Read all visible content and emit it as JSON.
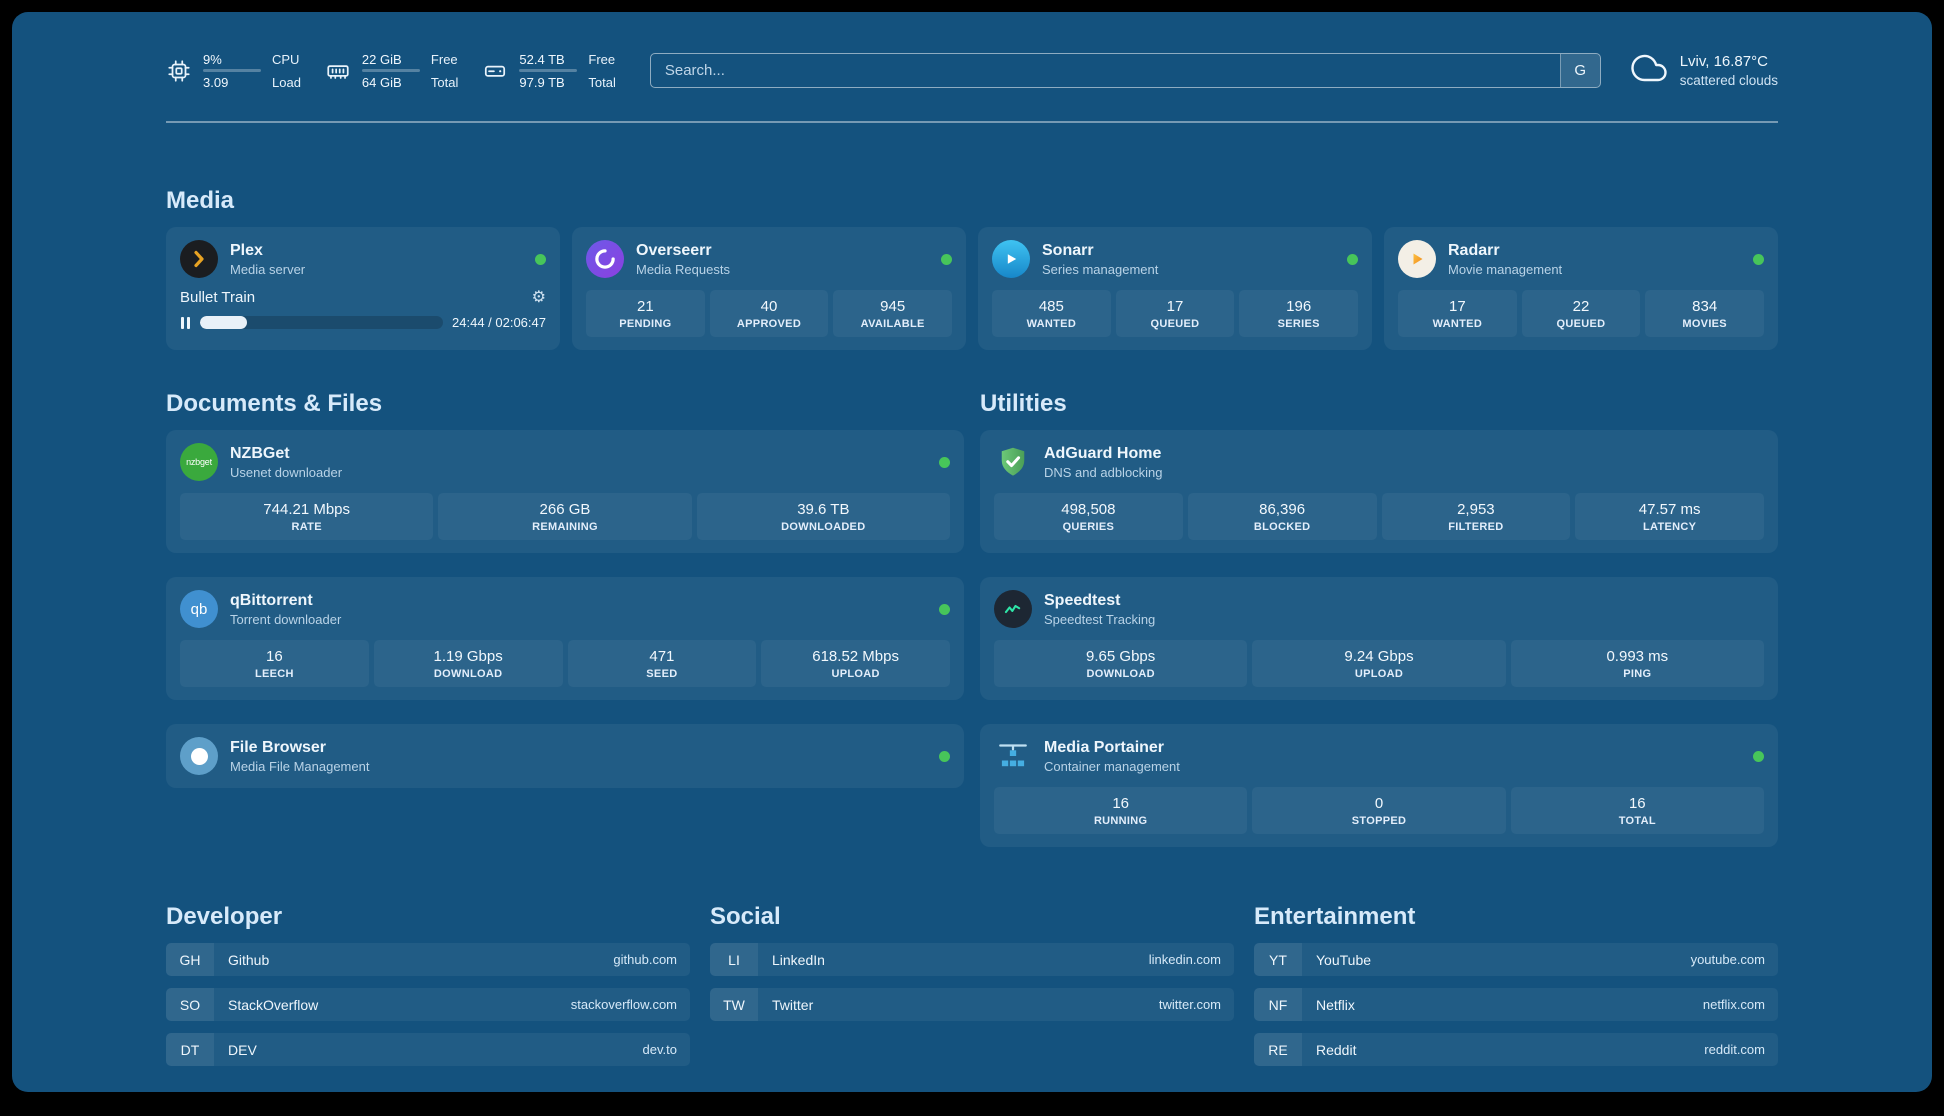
{
  "topbar": {
    "cpu": {
      "icon": "chip-icon",
      "value_top": "9%",
      "value_bottom": "3.09",
      "label_top": "CPU",
      "label_bottom": "Load",
      "progress_percent": 9
    },
    "ram": {
      "icon": "ram-icon",
      "value_top": "22 GiB",
      "value_bottom": "64 GiB",
      "label_top": "Free",
      "label_bottom": "Total",
      "progress_percent": 66
    },
    "disk": {
      "icon": "disk-icon",
      "value_top": "52.4 TB",
      "value_bottom": "97.9 TB",
      "label_top": "Free",
      "label_bottom": "Total",
      "progress_percent": 46
    },
    "search": {
      "placeholder": "Search...",
      "engine_label": "G"
    },
    "weather": {
      "icon": "cloud-icon",
      "location": "Lviv, 16.87°C",
      "condition": "scattered clouds"
    }
  },
  "media": {
    "heading": "Media",
    "plex": {
      "name": "Plex",
      "desc": "Media server",
      "online": true,
      "now_playing": {
        "title": "Bullet Train",
        "time": "24:44 / 02:06:47",
        "progress_percent": 19.5
      }
    },
    "overseerr": {
      "name": "Overseerr",
      "desc": "Media Requests",
      "online": true,
      "stats": [
        {
          "value": "21",
          "label": "PENDING"
        },
        {
          "value": "40",
          "label": "APPROVED"
        },
        {
          "value": "945",
          "label": "AVAILABLE"
        }
      ]
    },
    "sonarr": {
      "name": "Sonarr",
      "desc": "Series management",
      "online": true,
      "stats": [
        {
          "value": "485",
          "label": "WANTED"
        },
        {
          "value": "17",
          "label": "QUEUED"
        },
        {
          "value": "196",
          "label": "SERIES"
        }
      ]
    },
    "radarr": {
      "name": "Radarr",
      "desc": "Movie management",
      "online": true,
      "stats": [
        {
          "value": "17",
          "label": "WANTED"
        },
        {
          "value": "22",
          "label": "QUEUED"
        },
        {
          "value": "834",
          "label": "MOVIES"
        }
      ]
    }
  },
  "documents": {
    "heading": "Documents & Files",
    "nzbget": {
      "name": "NZBGet",
      "desc": "Usenet downloader",
      "online": true,
      "stats": [
        {
          "value": "744.21 Mbps",
          "label": "RATE"
        },
        {
          "value": "266 GB",
          "label": "REMAINING"
        },
        {
          "value": "39.6 TB",
          "label": "DOWNLOADED"
        }
      ]
    },
    "qbittorrent": {
      "name": "qBittorrent",
      "desc": "Torrent downloader",
      "online": true,
      "stats": [
        {
          "value": "16",
          "label": "LEECH"
        },
        {
          "value": "1.19 Gbps",
          "label": "DOWNLOAD"
        },
        {
          "value": "471",
          "label": "SEED"
        },
        {
          "value": "618.52 Mbps",
          "label": "UPLOAD"
        }
      ]
    },
    "filebrowser": {
      "name": "File Browser",
      "desc": "Media File Management",
      "online": true
    }
  },
  "utilities": {
    "heading": "Utilities",
    "adguard": {
      "name": "AdGuard Home",
      "desc": "DNS and adblocking",
      "stats": [
        {
          "value": "498,508",
          "label": "QUERIES"
        },
        {
          "value": "86,396",
          "label": "BLOCKED"
        },
        {
          "value": "2,953",
          "label": "FILTERED"
        },
        {
          "value": "47.57 ms",
          "label": "LATENCY"
        }
      ]
    },
    "speedtest": {
      "name": "Speedtest",
      "desc": "Speedtest Tracking",
      "stats": [
        {
          "value": "9.65 Gbps",
          "label": "DOWNLOAD"
        },
        {
          "value": "9.24 Gbps",
          "label": "UPLOAD"
        },
        {
          "value": "0.993 ms",
          "label": "PING"
        }
      ]
    },
    "portainer": {
      "name": "Media Portainer",
      "desc": "Container management",
      "online": true,
      "stats": [
        {
          "value": "16",
          "label": "RUNNING"
        },
        {
          "value": "0",
          "label": "STOPPED"
        },
        {
          "value": "16",
          "label": "TOTAL"
        }
      ]
    }
  },
  "bookmarks": [
    {
      "heading": "Developer",
      "items": [
        {
          "abbr": "GH",
          "name": "Github",
          "url": "github.com"
        },
        {
          "abbr": "SO",
          "name": "StackOverflow",
          "url": "stackoverflow.com"
        },
        {
          "abbr": "DT",
          "name": "DEV",
          "url": "dev.to"
        }
      ]
    },
    {
      "heading": "Social",
      "items": [
        {
          "abbr": "LI",
          "name": "LinkedIn",
          "url": "linkedin.com"
        },
        {
          "abbr": "TW",
          "name": "Twitter",
          "url": "twitter.com"
        }
      ]
    },
    {
      "heading": "Entertainment",
      "items": [
        {
          "abbr": "YT",
          "name": "YouTube",
          "url": "youtube.com"
        },
        {
          "abbr": "NF",
          "name": "Netflix",
          "url": "netflix.com"
        },
        {
          "abbr": "RE",
          "name": "Reddit",
          "url": "reddit.com"
        }
      ]
    }
  ]
}
